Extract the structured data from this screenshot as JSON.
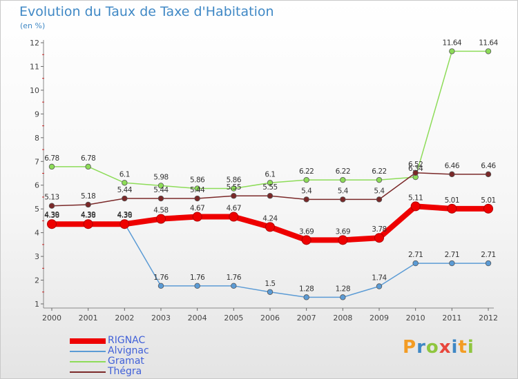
{
  "header": {
    "title": "Evolution du Taux de Taxe d'Habitation",
    "subtitle": "(en %)"
  },
  "logo": {
    "text": "Proxiti",
    "colors": [
      "#f39c24",
      "#3f88c5",
      "#8fc63f",
      "#e8463c",
      "#3f88c5",
      "#f39c24",
      "#8fc63f"
    ]
  },
  "chart_data": {
    "type": "line",
    "title": "Evolution du Taux de Taxe d'Habitation",
    "subtitle": "(en %)",
    "xlabel": "",
    "ylabel": "",
    "x": [
      "2000",
      "2001",
      "2002",
      "2003",
      "2004",
      "2005",
      "2006",
      "2007",
      "2008",
      "2009",
      "2010",
      "2011",
      "2012"
    ],
    "ylim": [
      1,
      12
    ],
    "yticks": [
      1,
      2,
      3,
      4,
      5,
      6,
      7,
      8,
      9,
      10,
      11,
      12
    ],
    "grid": false,
    "legend_position": "bottom-left",
    "series": [
      {
        "name": "RIGNAC",
        "color": "#ee0000",
        "values": [
          4.36,
          4.36,
          4.36,
          4.58,
          4.67,
          4.67,
          4.24,
          3.69,
          3.69,
          3.78,
          5.11,
          5.01,
          5.01
        ],
        "labels": [
          "4.36",
          "4.36",
          "4.36",
          "4.58",
          "4.67",
          "4.67",
          "4.24",
          "3.69",
          "3.69",
          "3.78",
          "5.11",
          "5.01",
          "5.01"
        ]
      },
      {
        "name": "Alvignac",
        "color": "#5b9bd5",
        "values": [
          4.39,
          4.39,
          4.39,
          1.76,
          1.76,
          1.76,
          1.5,
          1.28,
          1.28,
          1.74,
          2.71,
          2.71,
          2.71
        ],
        "labels": [
          "4.39",
          "4.39",
          "4.39",
          "1.76",
          "1.76",
          "1.76",
          "1.5",
          "1.28",
          "1.28",
          "1.74",
          "2.71",
          "2.71",
          "2.71"
        ]
      },
      {
        "name": "Gramat",
        "color": "#8ddc58",
        "values": [
          6.78,
          6.78,
          6.1,
          5.98,
          5.86,
          5.86,
          6.1,
          6.22,
          6.22,
          6.22,
          6.34,
          11.64,
          11.64
        ],
        "labels": [
          "6.78",
          "6.78",
          "6.1",
          "5.98",
          "5.86",
          "5.86",
          "6.1",
          "6.22",
          "6.22",
          "6.22",
          "6.34",
          "11.64",
          "11.64"
        ]
      },
      {
        "name": "Thégra",
        "color": "#7a2828",
        "values": [
          5.13,
          5.18,
          5.44,
          5.44,
          5.44,
          5.55,
          5.55,
          5.4,
          5.4,
          5.4,
          6.52,
          6.46,
          6.46
        ],
        "labels": [
          "5.13",
          "5.18",
          "5.44",
          "5.44",
          "5.44",
          "5.55",
          "5.55",
          "5.4",
          "5.4",
          "5.4",
          "6.52",
          "6.46",
          "6.46"
        ]
      }
    ]
  }
}
